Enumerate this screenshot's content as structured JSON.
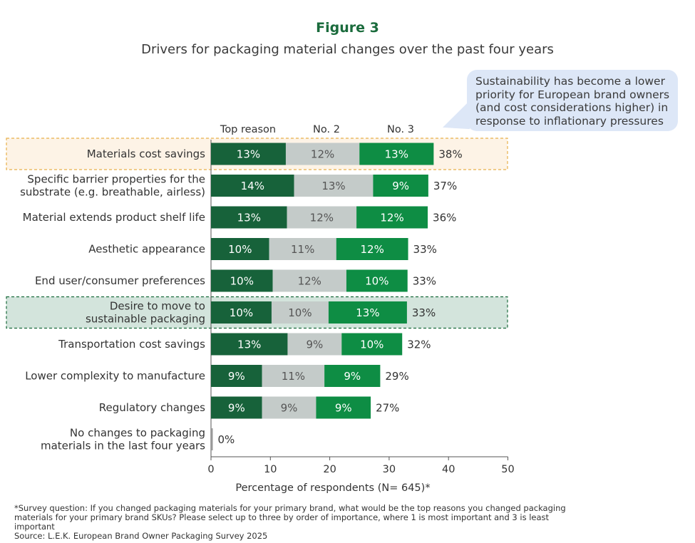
{
  "figure_label": "Figure 3",
  "title": "Drivers for packaging material changes over the past four years",
  "callout": "Sustainability has become a lower priority for European brand owners (and cost considerations higher) in response to inflationary pressures",
  "footnote": "*Survey question: If you changed packaging materials for your primary brand, what would be the top reasons you changed packaging materials for your primary brand SKUs? Please select up to three by order of importance, where 1 is most important and 3 is least important",
  "source": "Source: L.E.K. European Brand Owner Packaging Survey 2025",
  "colors": {
    "top_reason": "#17623a",
    "no2": "#c4cbc9",
    "no3": "#0e8d44",
    "highlight_cost_fill": "#fdf3e6",
    "highlight_cost_border": "#e8b04a",
    "highlight_sustainable_fill": "#d3e4dc",
    "highlight_sustainable_border": "#1a6b3c"
  },
  "chart_data": {
    "type": "bar",
    "orientation": "horizontal",
    "stacked": true,
    "xlabel": "Percentage of respondents (N= 645)*",
    "xlim": [
      0,
      50
    ],
    "xticks": [
      0,
      10,
      20,
      30,
      40,
      50
    ],
    "legend": [
      "Top reason",
      "No. 2",
      "No. 3"
    ],
    "legend_position": "top",
    "categories": [
      [
        "Materials cost savings"
      ],
      [
        "Specific barrier properties for the",
        "substrate (e.g. breathable, airless)"
      ],
      [
        "Material extends product shelf life"
      ],
      [
        "Aesthetic appearance"
      ],
      [
        "End user/consumer preferences"
      ],
      [
        "Desire to move to",
        "sustainable packaging"
      ],
      [
        "Transportation cost savings"
      ],
      [
        "Lower complexity to manufacture"
      ],
      [
        "Regulatory changes"
      ],
      [
        "No changes to packaging",
        "materials in the last four years"
      ]
    ],
    "series": [
      {
        "name": "Top reason",
        "values": [
          12.6,
          14.0,
          12.8,
          9.8,
          10.4,
          10.2,
          12.9,
          8.6,
          8.6,
          0.3
        ],
        "labels": [
          "13%",
          "14%",
          "13%",
          "10%",
          "10%",
          "10%",
          "13%",
          "9%",
          "9%",
          ""
        ]
      },
      {
        "name": "No. 2",
        "values": [
          12.4,
          13.3,
          11.7,
          11.3,
          12.4,
          9.6,
          9.1,
          10.5,
          9.1,
          0
        ],
        "labels": [
          "12%",
          "13%",
          "12%",
          "11%",
          "12%",
          "10%",
          "9%",
          "11%",
          "9%",
          ""
        ]
      },
      {
        "name": "No. 3",
        "values": [
          12.5,
          9.3,
          12.0,
          12.1,
          10.3,
          13.2,
          10.2,
          9.4,
          9.2,
          0
        ],
        "labels": [
          "13%",
          "9%",
          "12%",
          "12%",
          "10%",
          "13%",
          "10%",
          "9%",
          "9%",
          ""
        ]
      }
    ],
    "totals": [
      "38%",
      "37%",
      "36%",
      "33%",
      "33%",
      "33%",
      "32%",
      "29%",
      "27%",
      "0%"
    ],
    "highlighted_categories": [
      0,
      5
    ]
  }
}
